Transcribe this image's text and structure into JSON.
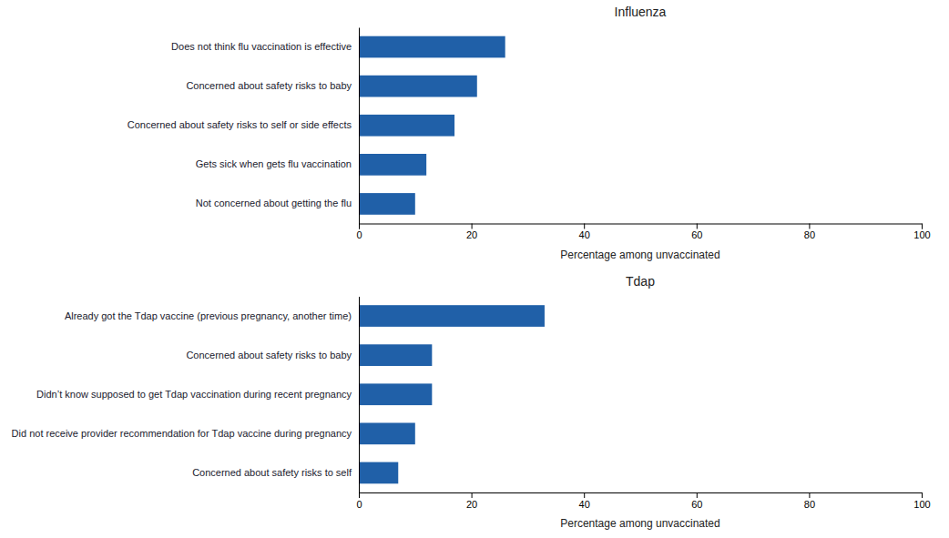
{
  "chart_data": [
    {
      "type": "bar",
      "orientation": "horizontal",
      "title": "Influenza",
      "categories": [
        "Does not think flu vaccination is effective",
        "Concerned about safety risks to baby",
        "Concerned about safety risks to self or side effects",
        "Gets sick when gets flu vaccination",
        "Not concerned about getting the flu"
      ],
      "values": [
        26,
        21,
        17,
        12,
        10
      ],
      "color": "#2060a8",
      "xlabel": "Percentage among unvaccinated",
      "xlim": [
        0,
        100
      ],
      "xticks": [
        0,
        20,
        40,
        60,
        80,
        100
      ],
      "grid": false
    },
    {
      "type": "bar",
      "orientation": "horizontal",
      "title": "Tdap",
      "categories": [
        "Already got the Tdap vaccine (previous pregnancy, another time)",
        "Concerned about safety risks to baby",
        "Didn’t know supposed to get Tdap vaccination during recent pregnancy",
        "Did not receive provider recommendation for Tdap vaccine during pregnancy",
        "Concerned about safety risks to self"
      ],
      "values": [
        33,
        13,
        13,
        10,
        7
      ],
      "color": "#2060a8",
      "xlabel": "Percentage among unvaccinated",
      "xlim": [
        0,
        100
      ],
      "xticks": [
        0,
        20,
        40,
        60,
        80,
        100
      ],
      "grid": false
    }
  ]
}
